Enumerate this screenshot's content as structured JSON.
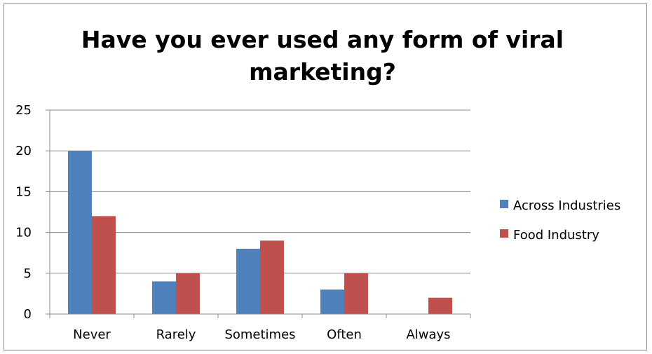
{
  "chart_data": {
    "type": "bar",
    "title": "Have you ever used any form of viral marketing?",
    "xlabel": "",
    "ylabel": "",
    "categories": [
      "Never",
      "Rarely",
      "Sometimes",
      "Often",
      "Always"
    ],
    "series": [
      {
        "name": "Across Industries",
        "values": [
          20,
          4,
          8,
          3,
          0
        ],
        "color": "#4f81bd"
      },
      {
        "name": "Food Industry",
        "values": [
          12,
          5,
          9,
          5,
          2
        ],
        "color": "#c0504d"
      }
    ],
    "ylim": [
      0,
      25
    ],
    "yticks": [
      0,
      5,
      10,
      15,
      20,
      25
    ],
    "grid": true,
    "legend": "right"
  }
}
